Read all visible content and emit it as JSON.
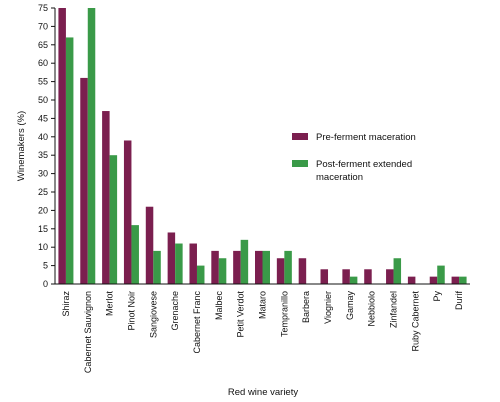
{
  "chart_data": {
    "type": "bar",
    "title": "",
    "xlabel": "Red wine variety",
    "ylabel": "Winemakers (%)",
    "ylim": [
      0,
      75
    ],
    "yticks": [
      0,
      5,
      10,
      15,
      20,
      25,
      30,
      35,
      40,
      45,
      50,
      55,
      60,
      65,
      70,
      75
    ],
    "grid": false,
    "legend_position": "right",
    "categories": [
      "Shiraz",
      "Cabernet Sauvignon",
      "Merlot",
      "Pinot Noir",
      "Sangiovese",
      "Grenache",
      "Cabernet Franc",
      "Malbec",
      "Petit Verdot",
      "Mataro",
      "Tempranillo",
      "Barbera",
      "Viognier",
      "Gamay",
      "Nebbiolo",
      "Zinfandel",
      "Ruby Cabernet",
      "Py",
      "Durif"
    ],
    "series": [
      {
        "name": "Pre-ferment maceration",
        "color": "#7b1f4f",
        "values": [
          75,
          56,
          47,
          39,
          21,
          14,
          11,
          9,
          9,
          9,
          7,
          7,
          4,
          4,
          4,
          4,
          2,
          2,
          2
        ]
      },
      {
        "name": "Post-ferment extended maceration",
        "color": "#3a9a48",
        "values": [
          67,
          75,
          35,
          16,
          9,
          11,
          5,
          7,
          12,
          9,
          9,
          null,
          null,
          2,
          null,
          7,
          null,
          5,
          2
        ]
      }
    ]
  }
}
